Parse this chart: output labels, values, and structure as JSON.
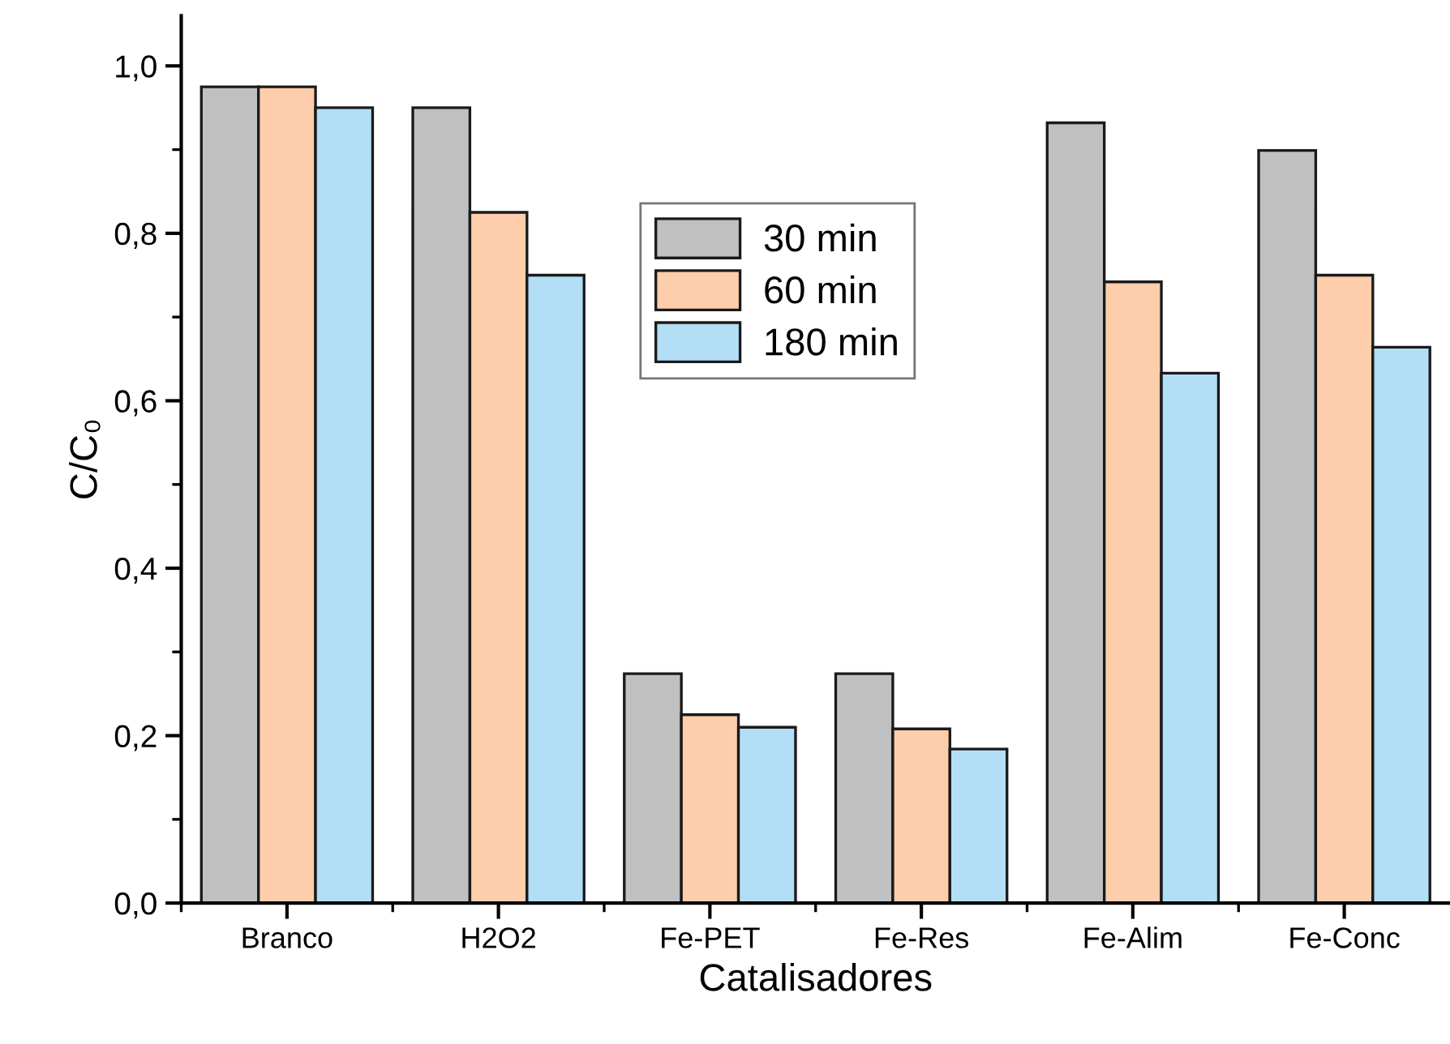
{
  "chart_data": {
    "type": "bar",
    "xlabel": "Catalisadores",
    "ylabel": "C/C₀",
    "categories": [
      "Branco",
      "H2O2",
      "Fe-PET",
      "Fe-Res",
      "Fe-Alim",
      "Fe-Conc"
    ],
    "series": [
      {
        "name": "30 min",
        "color": "#c0c0c0",
        "values": [
          0.975,
          0.95,
          0.274,
          0.274,
          0.932,
          0.899
        ]
      },
      {
        "name": "60 min",
        "color": "#fdcdac",
        "values": [
          0.975,
          0.825,
          0.225,
          0.208,
          0.742,
          0.75
        ]
      },
      {
        "name": "180 min",
        "color": "#b3dff6",
        "values": [
          0.95,
          0.75,
          0.21,
          0.184,
          0.633,
          0.664
        ]
      }
    ],
    "ylim": [
      0,
      1.06
    ],
    "yticks": [
      {
        "value": 0,
        "label": "0,0"
      },
      {
        "value": 0.2,
        "label": "0,2"
      },
      {
        "value": 0.4,
        "label": "0,4"
      },
      {
        "value": 0.6,
        "label": "0,6"
      },
      {
        "value": 0.8,
        "label": "0,8"
      },
      {
        "value": 1.0,
        "label": "1,0"
      }
    ],
    "legend": "top",
    "grid": false
  }
}
